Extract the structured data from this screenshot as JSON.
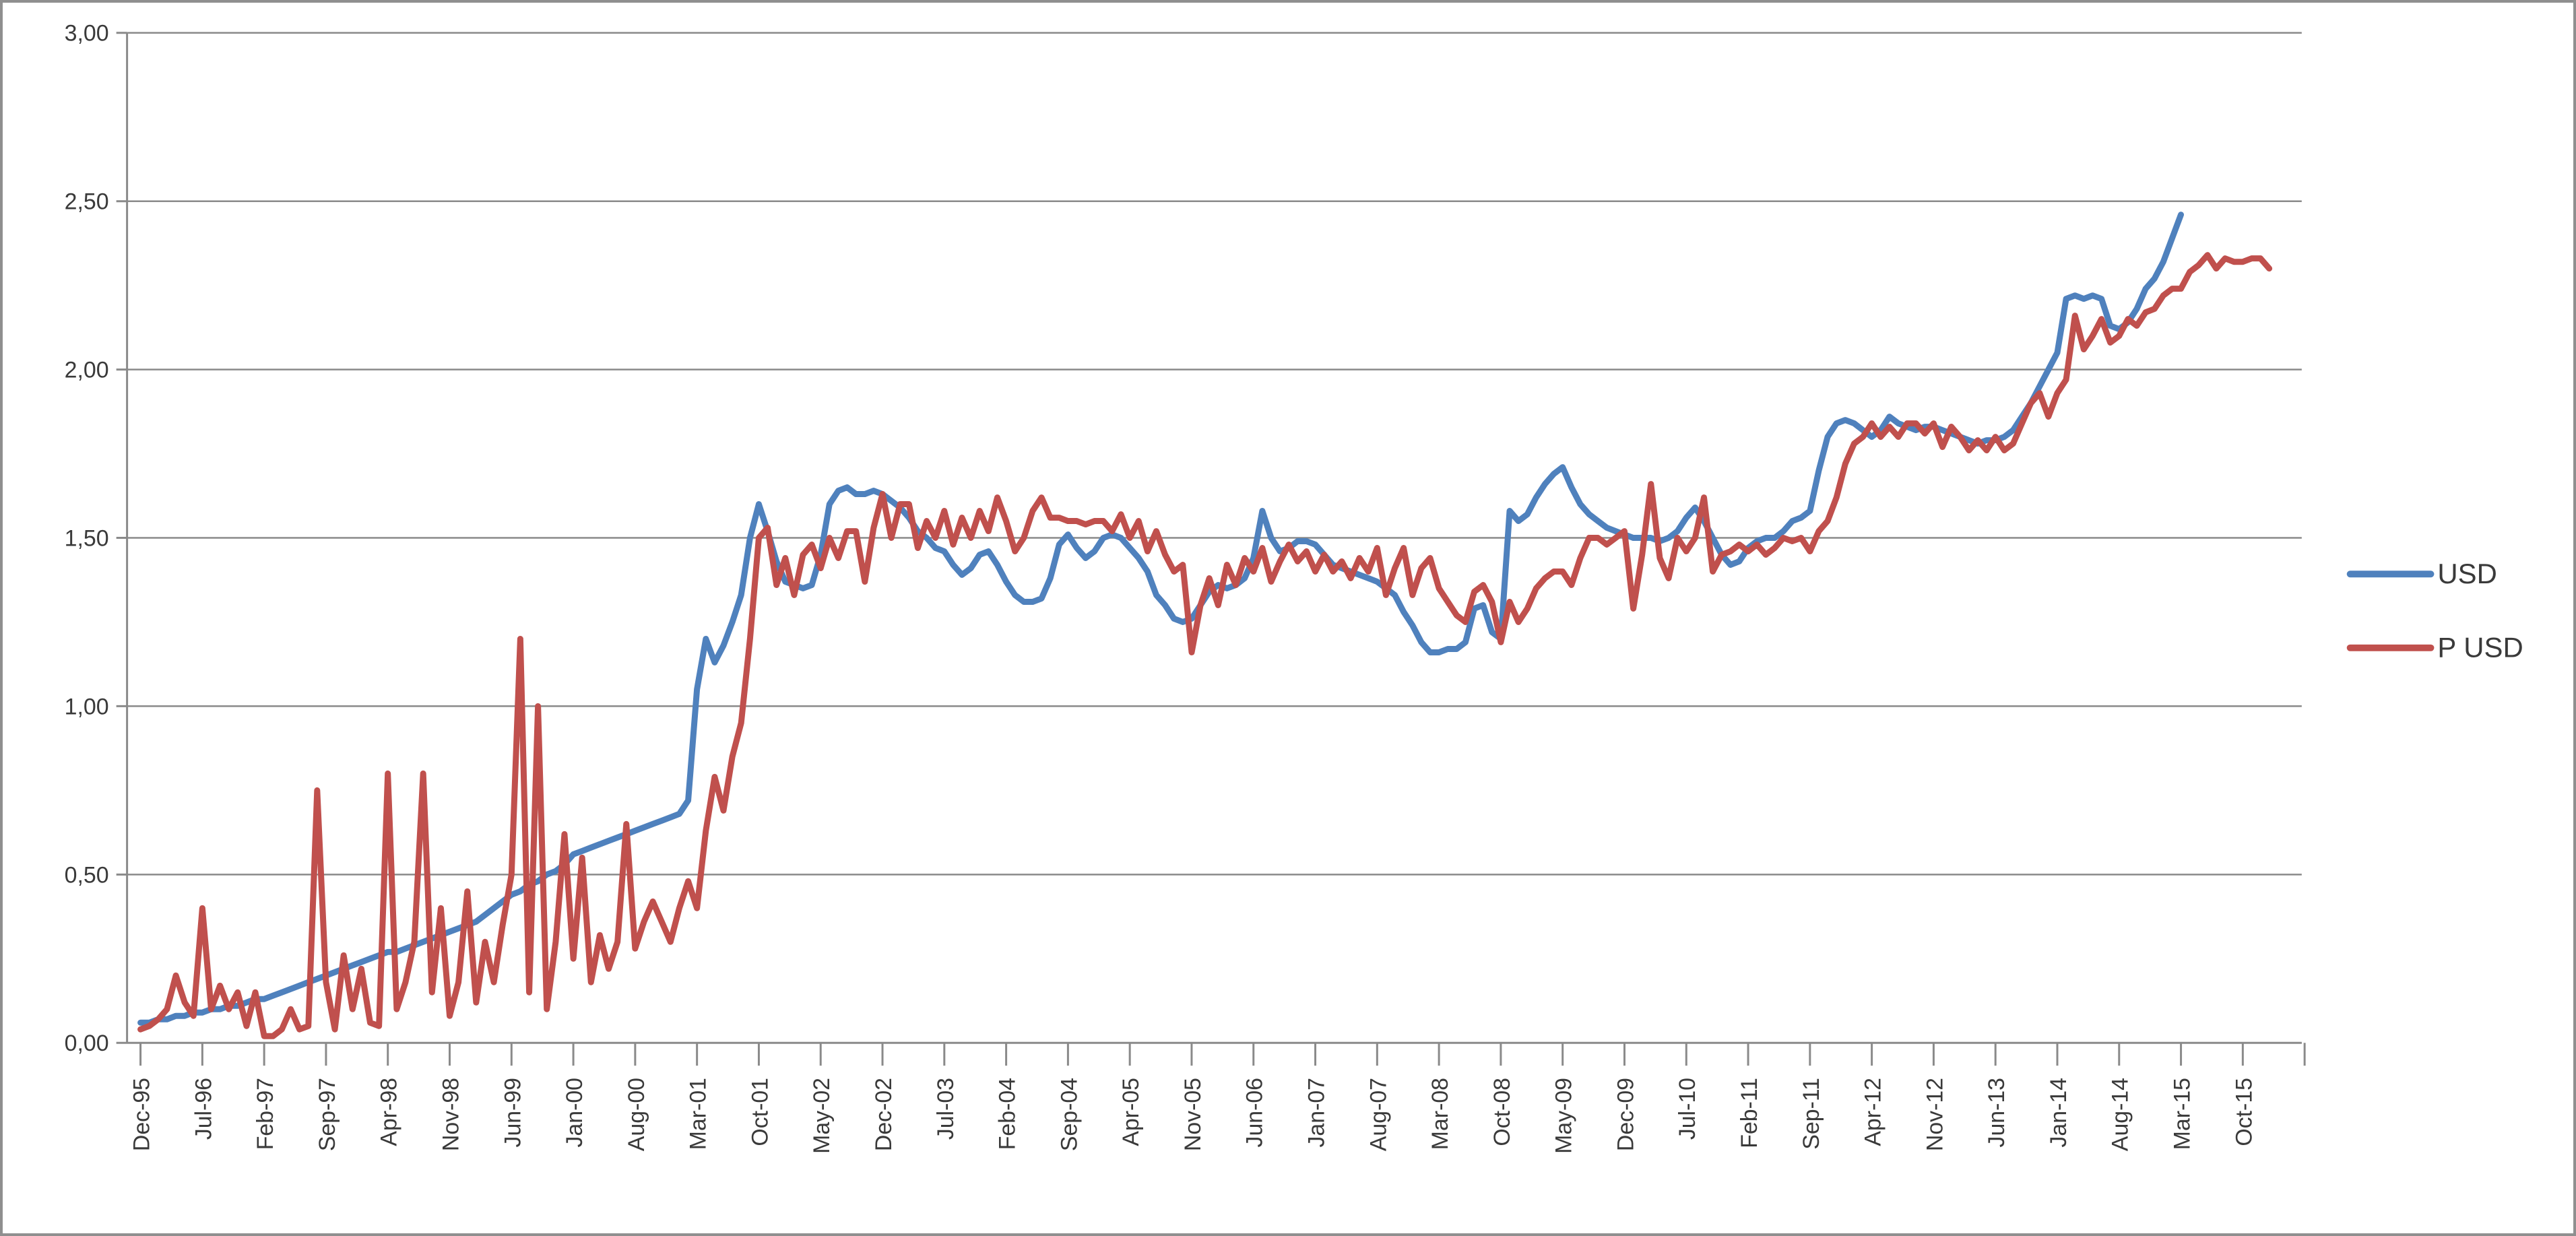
{
  "chart_data": {
    "type": "line",
    "title": "",
    "xlabel": "",
    "ylabel": "",
    "x_start": "Dec-95",
    "x_interval": "1 month",
    "x_tick_labels": [
      "Dec-95",
      "Jul-96",
      "Feb-97",
      "Sep-97",
      "Apr-98",
      "Nov-98",
      "Jun-99",
      "Jan-00",
      "Aug-00",
      "Mar-01",
      "Oct-01",
      "May-02",
      "Dec-02",
      "Jul-03",
      "Feb-04",
      "Sep-04",
      "Apr-05",
      "Nov-05",
      "Jun-06",
      "Jan-07",
      "Aug-07",
      "Mar-08",
      "Oct-08",
      "May-09",
      "Dec-09",
      "Jul-10",
      "Feb-11",
      "Sep-11",
      "Apr-12",
      "Nov-12",
      "Jun-13",
      "Jan-14",
      "Aug-14",
      "Mar-15",
      "Oct-15"
    ],
    "x_tick_interval_months": 7,
    "ylim": [
      0,
      3
    ],
    "y_tick_step": 0.5,
    "y_tick_labels": [
      "0,00",
      "0,50",
      "1,00",
      "1,50",
      "2,00",
      "2,50",
      "3,00"
    ],
    "grid": "horizontal",
    "legend_position": "right",
    "colors": {
      "grid": "#8a8a8a",
      "axis": "#8a8a8a",
      "text": "#3a3a3a",
      "frame": "#8f8f8f",
      "background": "#ffffff"
    },
    "series": [
      {
        "name": "USD",
        "color": "#4F81BD",
        "values": [
          0.06,
          0.06,
          0.07,
          0.07,
          0.08,
          0.08,
          0.09,
          0.09,
          0.1,
          0.1,
          0.11,
          0.11,
          0.12,
          0.13,
          0.13,
          0.14,
          0.15,
          0.16,
          0.17,
          0.18,
          0.19,
          0.2,
          0.21,
          0.22,
          0.23,
          0.24,
          0.25,
          0.26,
          0.27,
          0.27,
          0.28,
          0.29,
          0.3,
          0.31,
          0.32,
          0.33,
          0.34,
          0.35,
          0.36,
          0.38,
          0.4,
          0.42,
          0.44,
          0.45,
          0.47,
          0.48,
          0.5,
          0.51,
          0.53,
          0.56,
          0.57,
          0.58,
          0.59,
          0.6,
          0.61,
          0.62,
          0.63,
          0.64,
          0.65,
          0.66,
          0.67,
          0.68,
          0.72,
          1.05,
          1.2,
          1.13,
          1.18,
          1.25,
          1.33,
          1.5,
          1.6,
          1.52,
          1.43,
          1.37,
          1.36,
          1.35,
          1.36,
          1.45,
          1.6,
          1.64,
          1.65,
          1.63,
          1.63,
          1.64,
          1.63,
          1.61,
          1.59,
          1.56,
          1.52,
          1.5,
          1.47,
          1.46,
          1.42,
          1.39,
          1.41,
          1.45,
          1.46,
          1.42,
          1.37,
          1.33,
          1.31,
          1.31,
          1.32,
          1.38,
          1.48,
          1.51,
          1.47,
          1.44,
          1.46,
          1.5,
          1.51,
          1.5,
          1.47,
          1.44,
          1.4,
          1.33,
          1.3,
          1.26,
          1.25,
          1.26,
          1.3,
          1.34,
          1.36,
          1.35,
          1.36,
          1.38,
          1.44,
          1.58,
          1.5,
          1.46,
          1.47,
          1.49,
          1.49,
          1.48,
          1.45,
          1.42,
          1.41,
          1.4,
          1.39,
          1.38,
          1.37,
          1.35,
          1.33,
          1.28,
          1.24,
          1.19,
          1.16,
          1.16,
          1.17,
          1.17,
          1.19,
          1.29,
          1.3,
          1.22,
          1.2,
          1.58,
          1.55,
          1.57,
          1.62,
          1.66,
          1.69,
          1.71,
          1.65,
          1.6,
          1.57,
          1.55,
          1.53,
          1.52,
          1.51,
          1.5,
          1.5,
          1.5,
          1.49,
          1.5,
          1.52,
          1.56,
          1.59,
          1.55,
          1.5,
          1.45,
          1.42,
          1.43,
          1.47,
          1.49,
          1.5,
          1.5,
          1.52,
          1.55,
          1.56,
          1.58,
          1.7,
          1.8,
          1.84,
          1.85,
          1.84,
          1.82,
          1.8,
          1.82,
          1.86,
          1.84,
          1.83,
          1.82,
          1.83,
          1.83,
          1.82,
          1.81,
          1.8,
          1.79,
          1.78,
          1.79,
          1.79,
          1.8,
          1.82,
          1.86,
          1.9,
          1.95,
          2.0,
          2.05,
          2.21,
          2.22,
          2.21,
          2.22,
          2.21,
          2.13,
          2.12,
          2.14,
          2.18,
          2.24,
          2.27,
          2.32,
          2.39,
          2.46,
          null,
          null,
          null,
          null,
          null,
          null,
          null,
          null,
          null,
          null
        ]
      },
      {
        "name": "P USD",
        "color": "#C0504D",
        "values": [
          0.04,
          0.05,
          0.07,
          0.1,
          0.2,
          0.12,
          0.08,
          0.4,
          0.1,
          0.17,
          0.1,
          0.15,
          0.05,
          0.15,
          0.02,
          0.02,
          0.04,
          0.1,
          0.04,
          0.05,
          0.75,
          0.18,
          0.04,
          0.26,
          0.1,
          0.22,
          0.06,
          0.05,
          0.8,
          0.1,
          0.18,
          0.3,
          0.8,
          0.15,
          0.4,
          0.08,
          0.18,
          0.45,
          0.12,
          0.3,
          0.18,
          0.35,
          0.5,
          1.2,
          0.15,
          1.0,
          0.1,
          0.3,
          0.62,
          0.25,
          0.55,
          0.18,
          0.32,
          0.22,
          0.3,
          0.65,
          0.28,
          0.36,
          0.42,
          0.36,
          0.3,
          0.4,
          0.48,
          0.4,
          0.63,
          0.79,
          0.69,
          0.85,
          0.95,
          1.2,
          1.5,
          1.53,
          1.36,
          1.44,
          1.33,
          1.45,
          1.48,
          1.41,
          1.5,
          1.44,
          1.52,
          1.52,
          1.37,
          1.53,
          1.63,
          1.5,
          1.6,
          1.6,
          1.47,
          1.55,
          1.5,
          1.58,
          1.48,
          1.56,
          1.5,
          1.58,
          1.52,
          1.62,
          1.55,
          1.46,
          1.5,
          1.58,
          1.62,
          1.56,
          1.56,
          1.55,
          1.55,
          1.54,
          1.55,
          1.55,
          1.52,
          1.57,
          1.5,
          1.55,
          1.46,
          1.52,
          1.45,
          1.4,
          1.42,
          1.16,
          1.3,
          1.38,
          1.3,
          1.42,
          1.36,
          1.44,
          1.4,
          1.47,
          1.37,
          1.43,
          1.48,
          1.43,
          1.46,
          1.4,
          1.45,
          1.4,
          1.43,
          1.38,
          1.44,
          1.4,
          1.47,
          1.33,
          1.41,
          1.47,
          1.33,
          1.41,
          1.44,
          1.35,
          1.31,
          1.27,
          1.25,
          1.34,
          1.36,
          1.31,
          1.19,
          1.31,
          1.25,
          1.29,
          1.35,
          1.38,
          1.4,
          1.4,
          1.36,
          1.44,
          1.5,
          1.5,
          1.48,
          1.5,
          1.52,
          1.29,
          1.45,
          1.66,
          1.44,
          1.38,
          1.5,
          1.46,
          1.5,
          1.62,
          1.4,
          1.45,
          1.46,
          1.48,
          1.46,
          1.48,
          1.45,
          1.47,
          1.5,
          1.49,
          1.5,
          1.46,
          1.52,
          1.55,
          1.62,
          1.72,
          1.78,
          1.8,
          1.84,
          1.8,
          1.83,
          1.8,
          1.84,
          1.84,
          1.81,
          1.84,
          1.77,
          1.83,
          1.8,
          1.76,
          1.79,
          1.76,
          1.8,
          1.76,
          1.78,
          1.84,
          1.9,
          1.93,
          1.86,
          1.93,
          1.97,
          2.16,
          2.06,
          2.1,
          2.15,
          2.08,
          2.1,
          2.15,
          2.13,
          2.17,
          2.18,
          2.22,
          2.24,
          2.24,
          2.29,
          2.31,
          2.34,
          2.3,
          2.33,
          2.32,
          2.32,
          2.33,
          2.33,
          2.3
        ]
      }
    ],
    "legend": [
      "USD",
      "P USD"
    ]
  }
}
